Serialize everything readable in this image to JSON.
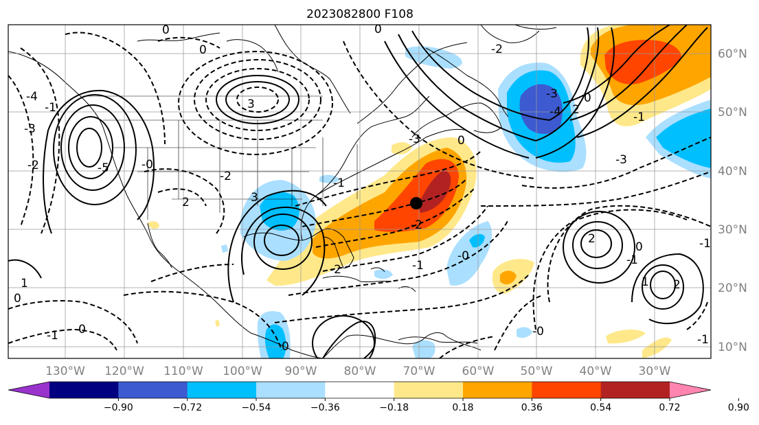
{
  "title": "2023082800 F108",
  "lon_labels": [
    "130°W",
    "120°W",
    "110°W",
    "100°W",
    "90°W",
    "80°W",
    "70°W",
    "60°W",
    "50°W",
    "40°W",
    "30°W"
  ],
  "lat_labels": [
    "60°N",
    "50°N",
    "40°N",
    "30°N",
    "20°N",
    "10°N"
  ],
  "colorbar": {
    "ticks": [
      "−0.90",
      "−0.72",
      "−0.54",
      "−0.36",
      "−0.18",
      "0.18",
      "0.36",
      "0.54",
      "0.72",
      "0.90"
    ],
    "colors": [
      "#9933cc",
      "#000080",
      "#3d5ad0",
      "#00bfff",
      "#aadfff",
      "#ffffff",
      "#ffe88a",
      "#ffa500",
      "#ff4500",
      "#b22222",
      "#ff85b0"
    ]
  },
  "contour_labels": [
    "0",
    "0",
    "0",
    "-2",
    "-3",
    "-4",
    "-1",
    "-3",
    "-4",
    "-5",
    "-2",
    "-0",
    "3",
    "-2",
    "2",
    "-3",
    "-2",
    "3",
    "-2",
    "-1",
    "0",
    "-1",
    "-0",
    "0",
    "-3",
    "-1",
    "2",
    "2",
    "-1",
    "0",
    "1",
    "2",
    "1",
    "-1",
    "-1",
    "-0",
    "0",
    "-1",
    "-0",
    "0"
  ],
  "center_marker": "black-dot"
}
